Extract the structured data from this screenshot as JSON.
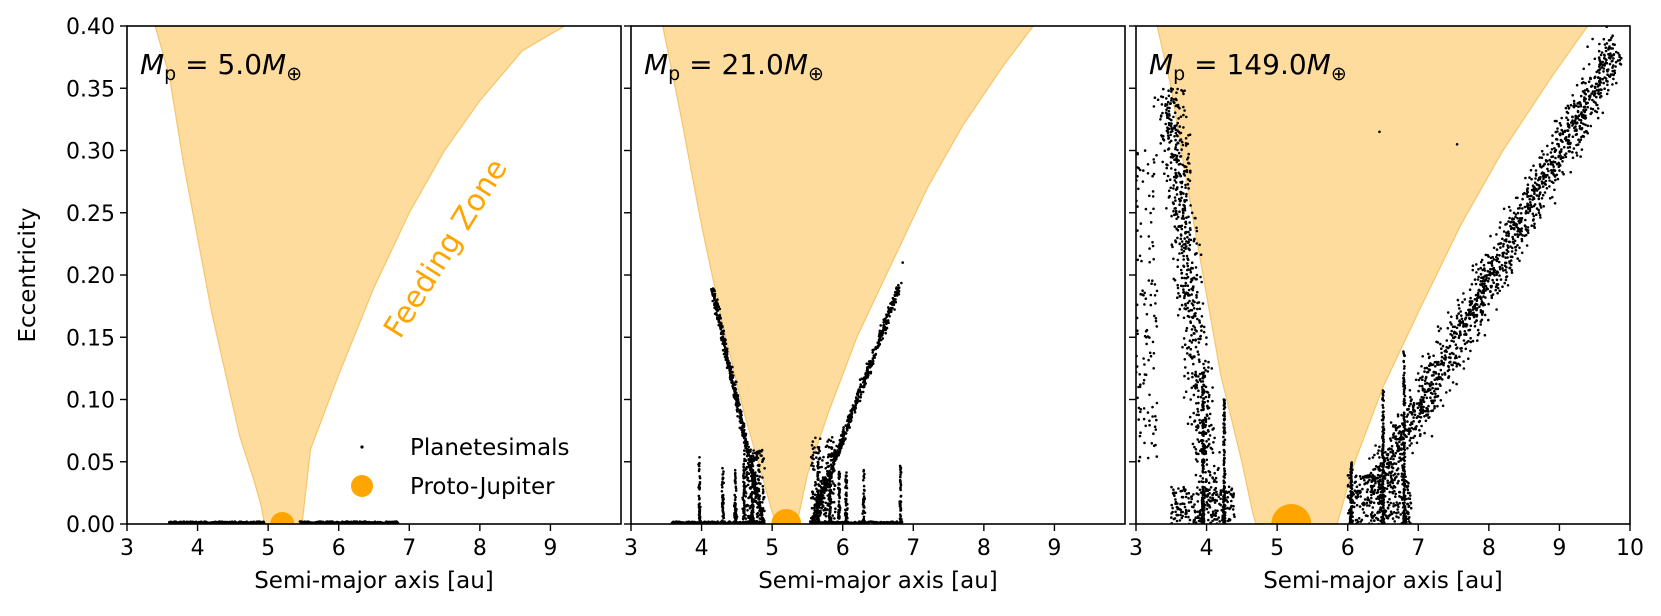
{
  "colors": {
    "feeding_zone": "#FDDC9E",
    "feeding_zone_edge": "#F7C56A",
    "accent": "#FFA500",
    "planetesimal": "#000000"
  },
  "legend": {
    "planetesimals": "Planetesimals",
    "proto_jupiter": "Proto-Jupiter"
  },
  "annotation": {
    "feeding_zone": "Feeding Zone"
  },
  "chart_data": [
    {
      "type": "scatter",
      "panel_label": "M_p = 5.0M_⊕",
      "planet_mass_earth": 5.0,
      "xlabel": "Semi-major axis [au]",
      "ylabel": "Eccentricity",
      "xlim": [
        3,
        10
      ],
      "ylim": [
        0,
        0.4
      ],
      "xticks": [
        "3",
        "4",
        "5",
        "6",
        "7",
        "8",
        "9"
      ],
      "yticks": [
        "0.00",
        "0.05",
        "0.10",
        "0.15",
        "0.20",
        "0.25",
        "0.30",
        "0.35",
        "0.40"
      ],
      "planet": {
        "a": 5.2,
        "e": 0.0
      },
      "feeding_zone": {
        "left": [
          [
            3.4,
            0.4
          ],
          [
            3.6,
            0.36
          ],
          [
            3.8,
            0.29
          ],
          [
            4.0,
            0.23
          ],
          [
            4.2,
            0.17
          ],
          [
            4.4,
            0.12
          ],
          [
            4.6,
            0.07
          ],
          [
            4.8,
            0.035
          ],
          [
            4.9,
            0.015
          ],
          [
            4.95,
            0.0
          ]
        ],
        "right": [
          [
            5.48,
            0.0
          ],
          [
            5.6,
            0.06
          ],
          [
            6.0,
            0.12
          ],
          [
            6.5,
            0.19
          ],
          [
            7.0,
            0.25
          ],
          [
            7.5,
            0.3
          ],
          [
            8.0,
            0.34
          ],
          [
            8.6,
            0.38
          ],
          [
            9.2,
            0.4
          ]
        ]
      },
      "planetesimals": [
        {
          "a_range": [
            3.6,
            4.95
          ],
          "e": 0.001
        },
        {
          "a_range": [
            5.45,
            6.85
          ],
          "e": 0.001
        }
      ],
      "legend": [
        "Planetesimals",
        "Proto-Jupiter"
      ],
      "legend_position": "lower-right",
      "grid": false
    },
    {
      "type": "scatter",
      "panel_label": "M_p = 21.0M_⊕",
      "planet_mass_earth": 21.0,
      "xlabel": "Semi-major axis [au]",
      "ylabel": "",
      "xlim": [
        3,
        10
      ],
      "ylim": [
        0,
        0.4
      ],
      "xticks": [
        "3",
        "4",
        "5",
        "6",
        "7",
        "8",
        "9"
      ],
      "planet": {
        "a": 5.2,
        "e": 0.0
      },
      "feeding_zone": {
        "left": [
          [
            3.45,
            0.4
          ],
          [
            3.7,
            0.33
          ],
          [
            4.0,
            0.24
          ],
          [
            4.3,
            0.16
          ],
          [
            4.6,
            0.09
          ],
          [
            4.8,
            0.05
          ],
          [
            4.95,
            0.02
          ],
          [
            5.05,
            0.0
          ]
        ],
        "right": [
          [
            5.35,
            0.0
          ],
          [
            5.5,
            0.04
          ],
          [
            5.8,
            0.09
          ],
          [
            6.2,
            0.15
          ],
          [
            6.7,
            0.21
          ],
          [
            7.2,
            0.27
          ],
          [
            7.7,
            0.32
          ],
          [
            8.3,
            0.37
          ],
          [
            8.7,
            0.4
          ]
        ]
      },
      "planetesimals": [
        {
          "a_range": [
            3.6,
            4.9
          ],
          "e": 0.001
        },
        {
          "a_range": [
            5.55,
            6.85
          ],
          "e": 0.001
        },
        {
          "branch": "inner",
          "from": [
            4.15,
            0.19
          ],
          "to": [
            4.88,
            0.0
          ]
        },
        {
          "branch": "outer",
          "from": [
            5.55,
            0.0
          ],
          "to": [
            6.8,
            0.19
          ]
        },
        {
          "resonance_spikes_a": [
            3.97,
            4.3,
            4.48,
            4.6,
            5.82,
            5.95,
            6.05,
            6.3,
            6.82
          ]
        }
      ],
      "grid": false
    },
    {
      "type": "scatter",
      "panel_label": "M_p = 149.0M_⊕",
      "planet_mass_earth": 149.0,
      "xlabel": "Semi-major axis [au]",
      "ylabel": "",
      "xlim": [
        3,
        10
      ],
      "ylim": [
        0,
        0.4
      ],
      "xticks": [
        "3",
        "4",
        "5",
        "6",
        "7",
        "8",
        "9",
        "10"
      ],
      "planet": {
        "a": 5.2,
        "e": 0.0
      },
      "feeding_zone": {
        "left": [
          [
            3.3,
            0.4
          ],
          [
            3.5,
            0.35
          ],
          [
            3.7,
            0.28
          ],
          [
            3.95,
            0.2
          ],
          [
            4.2,
            0.12
          ],
          [
            4.5,
            0.05
          ],
          [
            4.65,
            0.01
          ],
          [
            4.7,
            0.0
          ]
        ],
        "right": [
          [
            5.85,
            0.0
          ],
          [
            6.1,
            0.05
          ],
          [
            6.5,
            0.11
          ],
          [
            7.0,
            0.17
          ],
          [
            7.6,
            0.24
          ],
          [
            8.2,
            0.3
          ],
          [
            8.9,
            0.36
          ],
          [
            9.4,
            0.4
          ]
        ]
      },
      "planetesimals": [
        {
          "cloud": "inner",
          "a_range": [
            3.0,
            4.5
          ],
          "e_range": [
            0.0,
            0.37
          ]
        },
        {
          "cloud": "outer",
          "a_range": [
            6.0,
            10.0
          ],
          "e_range": [
            0.0,
            0.4
          ]
        },
        {
          "resonance_spikes_a": [
            3.95,
            4.3,
            6.05,
            6.5
          ]
        }
      ],
      "grid": false
    }
  ]
}
